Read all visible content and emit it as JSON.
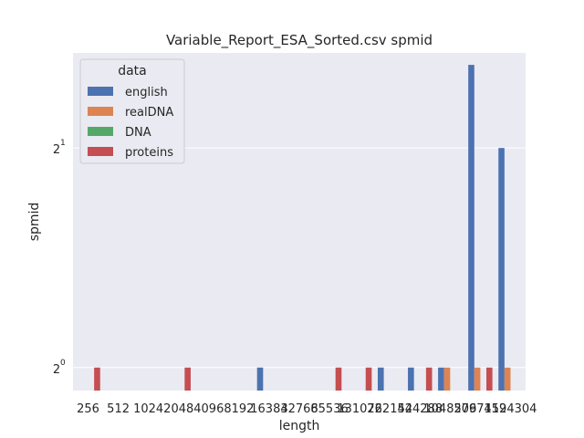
{
  "chart_data": {
    "type": "bar",
    "title": "Variable_Report_ESA_Sorted.csv spmid",
    "xlabel": "length",
    "ylabel": "spmid",
    "y_scale": "log2",
    "ylim": [
      0.93,
      2.7
    ],
    "y_ticks": [
      {
        "value": 1,
        "base": "2",
        "exp": "0"
      },
      {
        "value": 2,
        "base": "2",
        "exp": "1"
      }
    ],
    "categories": [
      "256",
      "512",
      "1024",
      "2048",
      "4096",
      "8192",
      "16384",
      "32768",
      "65536",
      "131072",
      "262144",
      "524288",
      "1048576",
      "2097152",
      "4194304"
    ],
    "legend": {
      "title": "data",
      "placement": "upper left"
    },
    "grid": true,
    "series": [
      {
        "name": "english",
        "color": "#4c72b0",
        "values": [
          null,
          null,
          null,
          null,
          null,
          null,
          1,
          null,
          null,
          null,
          1,
          1,
          1,
          2.6,
          2
        ]
      },
      {
        "name": "realDNA",
        "color": "#dd8452",
        "values": [
          null,
          null,
          null,
          null,
          null,
          null,
          null,
          null,
          null,
          null,
          null,
          null,
          1,
          1,
          1
        ]
      },
      {
        "name": "DNA",
        "color": "#55a868",
        "values": [
          null,
          null,
          null,
          null,
          null,
          null,
          null,
          null,
          null,
          null,
          null,
          null,
          null,
          null,
          null
        ]
      },
      {
        "name": "proteins",
        "color": "#c44e52",
        "values": [
          1,
          null,
          null,
          1,
          null,
          null,
          null,
          null,
          1,
          1,
          null,
          1,
          null,
          1,
          null
        ]
      }
    ]
  }
}
